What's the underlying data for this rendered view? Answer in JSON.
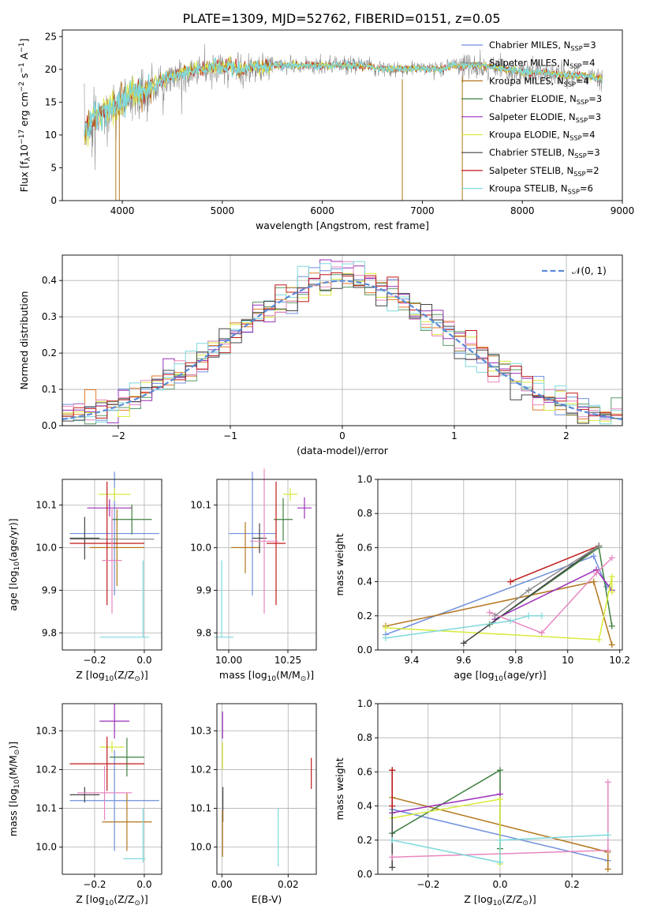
{
  "figure_title": "PLATE=1309, MJD=52762, FIBERID=0151, z=0.05",
  "colors": {
    "Chabrier MILES": "#6f8fdc",
    "Salpeter MILES": "#8c8c8c",
    "Kroupa MILES": "#b3761c",
    "Chabrier ELODIE": "#3f7f3f",
    "Salpeter ELODIE": "#9b30b8",
    "Kroupa ELODIE": "#d8ea3a",
    "Chabrier STELIB": "#444444",
    "Salpeter STELIB": "#c01818",
    "Kroupa STELIB": "#7fd8dc",
    "hist_extra_orange": "#e07b2a",
    "hist_extra_pink": "#e887c0",
    "hist_extra_green": "#5e9a68",
    "normal": "#5b8bd8"
  },
  "chart_data": [
    {
      "id": "spectrum",
      "type": "line",
      "xlabel": "wavelength [Angstrom, rest frame]",
      "ylabel": "Flux [f$_\\lambda$10$^{-17}$ erg cm$^{-2}$ s$^{-1}$ A$^{-1}$]",
      "xlim": [
        3400,
        9000
      ],
      "ylim": [
        0,
        26
      ],
      "xticks": [
        4000,
        5000,
        6000,
        7000,
        8000,
        9000
      ],
      "yticks": [
        0,
        5,
        10,
        15,
        20,
        25
      ],
      "grid": false,
      "legend_placement": "upper-right",
      "legend": [
        {
          "name": "Chabrier MILES",
          "label": "Chabrier MILES, N",
          "sub": "SSP",
          "tail": "=3"
        },
        {
          "name": "Salpeter MILES",
          "label": "Salpeter MILES, N",
          "sub": "SSP",
          "tail": "=4"
        },
        {
          "name": "Kroupa MILES",
          "label": "Kroupa MILES, N",
          "sub": "SSP",
          "tail": "=4"
        },
        {
          "name": "Chabrier ELODIE",
          "label": "Chabrier ELODIE, N",
          "sub": "SSP",
          "tail": "=3"
        },
        {
          "name": "Salpeter ELODIE",
          "label": "Salpeter ELODIE, N",
          "sub": "SSP",
          "tail": "=3"
        },
        {
          "name": "Kroupa ELODIE",
          "label": "Kroupa ELODIE, N",
          "sub": "SSP",
          "tail": "=4"
        },
        {
          "name": "Chabrier STELIB",
          "label": "Chabrier STELIB, N",
          "sub": "SSP",
          "tail": "=3"
        },
        {
          "name": "Salpeter STELIB",
          "label": "Salpeter STELIB, N",
          "sub": "SSP",
          "tail": "=2"
        },
        {
          "name": "Kroupa STELIB",
          "label": "Kroupa STELIB, N",
          "sub": "SSP",
          "tail": "=6"
        }
      ],
      "data_envelope": {
        "x": [
          3620,
          3700,
          3800,
          3900,
          4000,
          4100,
          4200,
          4300,
          4400,
          4500,
          4600,
          4700,
          4800,
          4900,
          5000,
          5100,
          5200,
          5300,
          5400,
          5600,
          5800,
          6000,
          6200,
          6400,
          6600,
          6800,
          7000,
          7200,
          7300,
          7400,
          7500,
          7600,
          7800,
          8000,
          8200,
          8400,
          8600,
          8800
        ],
        "y": [
          11,
          13,
          14,
          15,
          16,
          17,
          17.5,
          18,
          19,
          19.5,
          20,
          20.5,
          20.5,
          21,
          21,
          21,
          20.5,
          21,
          21,
          21,
          21,
          21,
          21,
          21,
          20.5,
          20.5,
          20.5,
          20.5,
          21,
          21,
          21,
          21,
          20.5,
          20,
          20,
          19.5,
          19.5,
          19
        ]
      },
      "dips": [
        {
          "x": 3935,
          "y": 0
        },
        {
          "x": 3970,
          "y": 0
        },
        {
          "x": 6800,
          "y": 0
        },
        {
          "x": 7400,
          "y": 0
        }
      ]
    },
    {
      "id": "residual-hist",
      "type": "histogram",
      "xlabel": "(data-model)/error",
      "ylabel": "Normed distribution",
      "xlim": [
        -2.5,
        2.5
      ],
      "ylim": [
        0,
        0.47
      ],
      "xticks": [
        -2,
        -1,
        0,
        1,
        2
      ],
      "yticks": [
        0.0,
        0.1,
        0.2,
        0.3,
        0.4
      ],
      "grid": true,
      "legend_placement": "upper-right",
      "legend": [
        {
          "name": "normal",
          "label": "$\\mathcal{N}(0,1)$"
        }
      ],
      "bin_edges_start": -2.5,
      "bin_width": 0.1,
      "bin_count": 50,
      "normal_curve": {
        "mean": 0,
        "sigma": 1
      }
    },
    {
      "id": "age-vs-Z",
      "type": "errorbar",
      "xlabel": "Z [log$_{10}$(Z/Z$_\\odot$)]",
      "ylabel": "age  [log$_{10}$(age/yr)]",
      "xlim": [
        -0.33,
        0.07
      ],
      "ylim": [
        9.76,
        10.16
      ],
      "xticks": [
        -0.2,
        0.0
      ],
      "xticklabels": [
        "−0.2",
        "0.0"
      ],
      "yticks": [
        9.8,
        9.9,
        10.0,
        10.1
      ],
      "grid": true,
      "points": [
        {
          "model": "Chabrier MILES",
          "x": -0.12,
          "y": 10.033,
          "xerr": 0.18,
          "yerr": 0.145
        },
        {
          "model": "Salpeter MILES",
          "x": -0.13,
          "y": 10.02,
          "xerr": 0.17,
          "yerr": 0.05
        },
        {
          "model": "Kroupa MILES",
          "x": -0.11,
          "y": 10.0,
          "xerr": 0.11,
          "yerr": 0.09
        },
        {
          "model": "Chabrier ELODIE",
          "x": -0.05,
          "y": 10.066,
          "xerr": 0.08,
          "yerr": 0.035
        },
        {
          "model": "Salpeter ELODIE",
          "x": -0.14,
          "y": 10.093,
          "xerr": 0.09,
          "yerr": 0.02
        },
        {
          "model": "Kroupa ELODIE",
          "x": -0.12,
          "y": 10.125,
          "xerr": 0.065,
          "yerr": 0.015
        },
        {
          "model": "Chabrier STELIB",
          "x": -0.24,
          "y": 10.022,
          "xerr": 0.06,
          "yerr": 0.05
        },
        {
          "model": "Salpeter STELIB",
          "x": -0.15,
          "y": 10.01,
          "xerr": 0.15,
          "yerr": 0.145
        },
        {
          "model": "hist_extra_pink",
          "x": -0.13,
          "y": 9.97,
          "xerr": 0.04,
          "yerr": 0.125
        },
        {
          "model": "Kroupa STELIB",
          "x": -0.08,
          "y": 9.79,
          "xerr": 0.1,
          "yerr": 0.0
        },
        {
          "model": "Kroupa STELIB",
          "x": -0.005,
          "y": 9.88,
          "xerr": 0.0,
          "yerr": 0.09
        }
      ]
    },
    {
      "id": "age-vs-mass",
      "type": "errorbar",
      "xlabel": "mass [log$_{10}$(M/M$_\\odot$)]",
      "xlim": [
        9.95,
        10.37
      ],
      "ylim": [
        9.76,
        10.16
      ],
      "xticks": [
        10.0,
        10.25
      ],
      "xticklabels": [
        "10.00",
        "10.25"
      ],
      "yticks": [
        9.8,
        9.9,
        10.0,
        10.1
      ],
      "grid": true,
      "points": [
        {
          "model": "Chabrier MILES",
          "x": 10.1,
          "y": 10.033,
          "xerr": 0.1,
          "yerr": 0.145
        },
        {
          "model": "Kroupa MILES",
          "x": 10.07,
          "y": 10.0,
          "xerr": 0.06,
          "yerr": 0.06
        },
        {
          "model": "Chabrier ELODIE",
          "x": 10.23,
          "y": 10.066,
          "xerr": 0.04,
          "yerr": 0.05
        },
        {
          "model": "Salpeter ELODIE",
          "x": 10.32,
          "y": 10.093,
          "xerr": 0.03,
          "yerr": 0.025
        },
        {
          "model": "Kroupa ELODIE",
          "x": 10.26,
          "y": 10.125,
          "xerr": 0.03,
          "yerr": 0.015
        },
        {
          "model": "Chabrier STELIB",
          "x": 10.13,
          "y": 10.022,
          "xerr": 0.03,
          "yerr": 0.035
        },
        {
          "model": "Salpeter STELIB",
          "x": 10.2,
          "y": 10.01,
          "xerr": 0.04,
          "yerr": 0.145
        },
        {
          "model": "hist_extra_pink",
          "x": 10.15,
          "y": 10.015,
          "xerr": 0.06,
          "yerr": 0.17
        },
        {
          "model": "Kroupa STELIB",
          "x": 9.98,
          "y": 9.79,
          "xerr": 0.04,
          "yerr": 0.0
        },
        {
          "model": "Kroupa STELIB",
          "x": 9.97,
          "y": 9.88,
          "xerr": 0.0,
          "yerr": 0.09
        }
      ]
    },
    {
      "id": "weight-vs-age",
      "type": "line",
      "xlabel": "age  [log$_{10}$(age/yr)]",
      "ylabel": "mass weight",
      "xlim": [
        9.27,
        10.21
      ],
      "ylim": [
        0,
        1.0
      ],
      "xticks": [
        9.4,
        9.6,
        9.8,
        10.0,
        10.2
      ],
      "yticks": [
        0.0,
        0.2,
        0.4,
        0.6,
        0.8,
        1.0
      ],
      "grid": true,
      "series": [
        {
          "model": "Chabrier MILES",
          "x": [
            9.3,
            10.1,
            10.15,
            10.16
          ],
          "y": [
            0.09,
            0.55,
            0.37,
            0.37
          ]
        },
        {
          "model": "Kroupa MILES",
          "x": [
            9.3,
            10.1,
            10.17
          ],
          "y": [
            0.14,
            0.4,
            0.03
          ]
        },
        {
          "model": "Chabrier ELODIE",
          "x": [
            9.7,
            10.12,
            10.17
          ],
          "y": [
            0.15,
            0.6,
            0.14
          ]
        },
        {
          "model": "Salpeter ELODIE",
          "x": [
            9.72,
            10.11,
            10.17
          ],
          "y": [
            0.18,
            0.47,
            0.35
          ]
        },
        {
          "model": "Kroupa ELODIE",
          "x": [
            9.3,
            10.12,
            10.17,
            10.17
          ],
          "y": [
            0.13,
            0.06,
            0.43,
            0.34
          ]
        },
        {
          "model": "Chabrier STELIB",
          "x": [
            9.6,
            10.12
          ],
          "y": [
            0.04,
            0.61
          ]
        },
        {
          "model": "Salpeter STELIB",
          "x": [
            9.78,
            10.12
          ],
          "y": [
            0.4,
            0.61
          ]
        },
        {
          "model": "hist_extra_pink",
          "x": [
            9.7,
            9.9,
            10.11,
            10.17
          ],
          "y": [
            0.22,
            0.1,
            0.45,
            0.54
          ]
        },
        {
          "model": "Kroupa STELIB",
          "x": [
            9.3,
            9.78,
            9.85,
            9.9
          ],
          "y": [
            0.07,
            0.17,
            0.2,
            0.2
          ]
        },
        {
          "model": "Salpeter MILES",
          "x": [
            9.72,
            9.85,
            10.12
          ],
          "y": [
            0.2,
            0.35,
            0.61
          ]
        }
      ]
    },
    {
      "id": "mass-vs-Z",
      "type": "errorbar",
      "xlabel": "Z [log$_{10}$(Z/Z$_\\odot$)]",
      "ylabel": "mass [log$_{10}$(M/M$_\\odot$)]",
      "xlim": [
        -0.33,
        0.07
      ],
      "ylim": [
        9.93,
        10.37
      ],
      "xticks": [
        -0.2,
        0.0
      ],
      "xticklabels": [
        "−0.2",
        "0.0"
      ],
      "yticks": [
        10.0,
        10.1,
        10.2,
        10.3
      ],
      "grid": true,
      "points": [
        {
          "model": "Chabrier MILES",
          "x": -0.12,
          "y": 10.12,
          "xerr": 0.18,
          "yerr": 0.13
        },
        {
          "model": "Kroupa MILES",
          "x": -0.07,
          "y": 10.065,
          "xerr": 0.1,
          "yerr": 0.075
        },
        {
          "model": "Chabrier ELODIE",
          "x": -0.07,
          "y": 10.232,
          "xerr": 0.07,
          "yerr": 0.05
        },
        {
          "model": "Salpeter ELODIE",
          "x": -0.12,
          "y": 10.325,
          "xerr": 0.06,
          "yerr": 0.045
        },
        {
          "model": "Kroupa ELODIE",
          "x": -0.13,
          "y": 10.258,
          "xerr": 0.05,
          "yerr": 0.015
        },
        {
          "model": "Chabrier STELIB",
          "x": -0.24,
          "y": 10.135,
          "xerr": 0.06,
          "yerr": 0.02
        },
        {
          "model": "Salpeter STELIB",
          "x": -0.15,
          "y": 10.215,
          "xerr": 0.15,
          "yerr": 0.07
        },
        {
          "model": "hist_extra_pink",
          "x": -0.16,
          "y": 10.14,
          "xerr": 0.11,
          "yerr": 0.07
        },
        {
          "model": "Kroupa STELIB",
          "x": -0.04,
          "y": 9.97,
          "xerr": 0.045,
          "yerr": 0.0
        },
        {
          "model": "Kroupa STELIB",
          "x": -0.005,
          "y": 10.03,
          "xerr": 0.0,
          "yerr": 0.07
        }
      ]
    },
    {
      "id": "mass-vs-EBV",
      "type": "errorbar",
      "xlabel": "E(B-V)",
      "xlim": [
        -0.0015,
        0.0285
      ],
      "ylim": [
        9.93,
        10.37
      ],
      "xticks": [
        0.0,
        0.02
      ],
      "xticklabels": [
        "0.00",
        "0.02"
      ],
      "yticks": [
        10.0,
        10.1,
        10.2,
        10.3
      ],
      "grid": true,
      "points": [
        {
          "model": "Salpeter ELODIE",
          "x": 0.0002,
          "y": 10.315,
          "xerr": 0,
          "yerr": 0.035
        },
        {
          "model": "Kroupa ELODIE",
          "x": 0.0002,
          "y": 10.235,
          "xerr": 0,
          "yerr": 0.035
        },
        {
          "model": "Chabrier STELIB",
          "x": 0.0003,
          "y": 10.11,
          "xerr": 0,
          "yerr": 0.045
        },
        {
          "model": "Kroupa MILES",
          "x": 0.0002,
          "y": 10.035,
          "xerr": 0,
          "yerr": 0.06
        },
        {
          "model": "Salpeter STELIB",
          "x": 0.027,
          "y": 10.19,
          "xerr": 0,
          "yerr": 0.04
        },
        {
          "model": "Kroupa STELIB",
          "x": 0.017,
          "y": 10.025,
          "xerr": 0,
          "yerr": 0.075
        }
      ]
    },
    {
      "id": "weight-vs-Z",
      "type": "line",
      "xlabel": "Z [log$_{10}$(Z/Z$_\\odot$)]",
      "ylabel": "mass weight",
      "xlim": [
        -0.34,
        0.34
      ],
      "ylim": [
        0,
        1.0
      ],
      "xticks": [
        -0.2,
        0.0,
        0.2
      ],
      "xticklabels": [
        "−0.2",
        "0.0",
        "0.2"
      ],
      "yticks": [
        0.0,
        0.2,
        0.4,
        0.6,
        0.8,
        1.0
      ],
      "grid": true,
      "series": [
        {
          "model": "Chabrier MILES",
          "x": [
            -0.3,
            0.3
          ],
          "y": [
            0.38,
            0.08
          ]
        },
        {
          "model": "Kroupa MILES",
          "x": [
            -0.3,
            0.3,
            0.3
          ],
          "y": [
            0.45,
            0.13,
            0.03
          ]
        },
        {
          "model": "Chabrier ELODIE",
          "x": [
            -0.3,
            0.0,
            0.0
          ],
          "y": [
            0.24,
            0.61,
            0.15
          ]
        },
        {
          "model": "Salpeter ELODIE",
          "x": [
            -0.3,
            0.0
          ],
          "y": [
            0.36,
            0.47
          ]
        },
        {
          "model": "Kroupa ELODIE",
          "x": [
            -0.3,
            0.0,
            0.0
          ],
          "y": [
            0.33,
            0.44,
            0.06
          ]
        },
        {
          "model": "Chabrier STELIB",
          "x": [
            -0.3,
            -0.3
          ],
          "y": [
            0.04,
            0.61
          ]
        },
        {
          "model": "Salpeter STELIB",
          "x": [
            -0.3,
            -0.3
          ],
          "y": [
            0.4,
            0.61
          ]
        },
        {
          "model": "hist_extra_pink",
          "x": [
            -0.3,
            0.3,
            0.3
          ],
          "y": [
            0.1,
            0.14,
            0.54
          ]
        },
        {
          "model": "Kroupa STELIB",
          "x": [
            -0.3,
            0.0,
            0.0,
            0.3
          ],
          "y": [
            0.2,
            0.07,
            0.2,
            0.23
          ]
        }
      ]
    }
  ]
}
